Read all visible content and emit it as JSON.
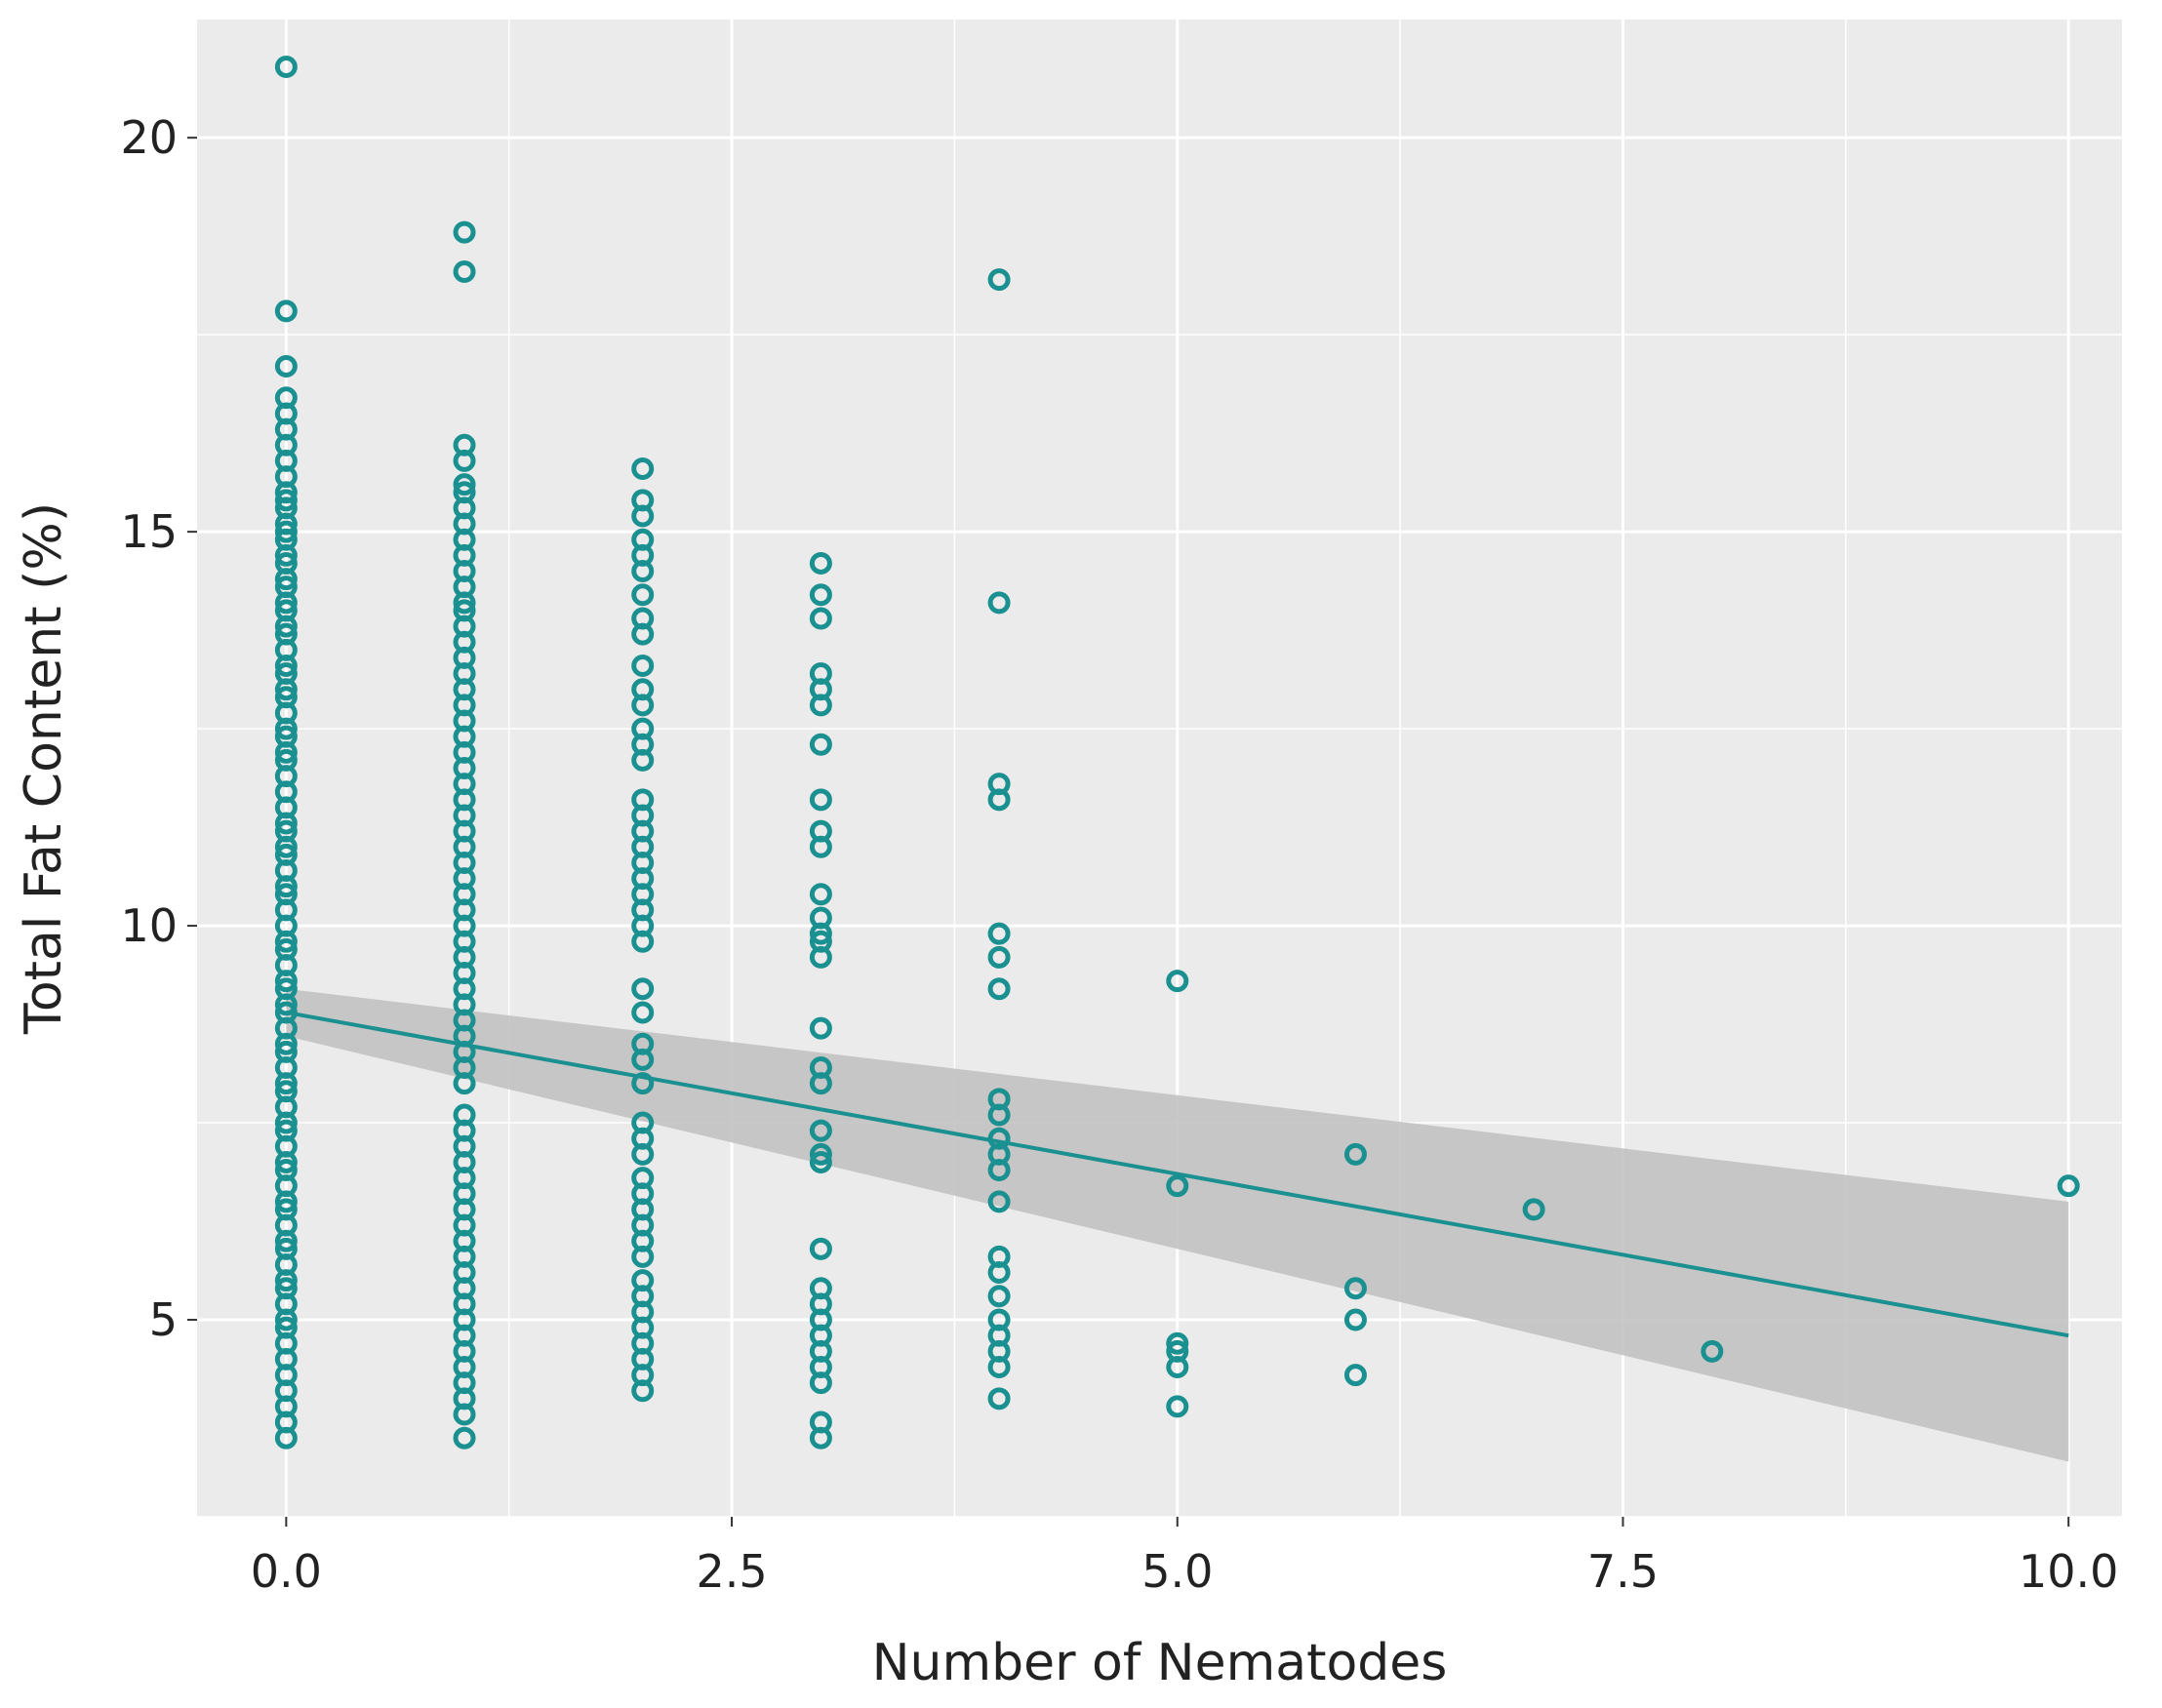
{
  "chart_data": {
    "type": "scatter",
    "title": "",
    "xlabel": "Number of Nematodes",
    "ylabel": "Total Fat Content (%)",
    "xlim": [
      -0.5,
      10.3
    ],
    "ylim": [
      2.5,
      21.5
    ],
    "x_ticks": [
      0.0,
      2.5,
      5.0,
      7.5,
      10.0
    ],
    "x_tick_labels": [
      "0.0",
      "2.5",
      "5.0",
      "7.5",
      "10.0"
    ],
    "y_ticks": [
      5,
      10,
      15,
      20
    ],
    "y_tick_labels": [
      "5",
      "10",
      "15",
      "20"
    ],
    "grid": true,
    "colors": {
      "panel": "#ebebeb",
      "grid": "#ffffff",
      "points": "#1b9090",
      "line": "#1b9090",
      "ribbon": "#c2c2c2"
    },
    "points": [
      {
        "x": 0,
        "y": [
          20.9,
          17.8,
          17.1,
          16.7,
          16.5,
          16.3,
          16.1,
          15.9,
          15.7,
          15.5,
          15.4,
          15.3,
          15.1,
          15.0,
          14.9,
          14.7,
          14.6,
          14.4,
          14.3,
          14.1,
          14.0,
          13.8,
          13.7,
          13.5,
          13.3,
          13.2,
          13.0,
          12.9,
          12.7,
          12.5,
          12.4,
          12.2,
          12.1,
          11.9,
          11.7,
          11.5,
          11.3,
          11.2,
          11.0,
          10.9,
          10.7,
          10.5,
          10.4,
          10.2,
          10.0,
          9.8,
          9.7,
          9.5,
          9.3,
          9.2,
          9.0,
          8.9,
          8.7,
          8.5,
          8.4,
          8.2,
          8.0,
          7.9,
          7.7,
          7.5,
          7.4,
          7.2,
          7.0,
          6.9,
          6.7,
          6.5,
          6.4,
          6.2,
          6.0,
          5.9,
          5.7,
          5.5,
          5.4,
          5.2,
          5.0,
          4.9,
          4.7,
          4.5,
          4.3,
          4.1,
          3.9,
          3.7,
          3.5
        ]
      },
      {
        "x": 1,
        "y": [
          18.8,
          18.3,
          16.1,
          15.9,
          15.6,
          15.5,
          15.3,
          15.1,
          14.9,
          14.7,
          14.5,
          14.3,
          14.1,
          14.0,
          13.8,
          13.6,
          13.4,
          13.2,
          13.0,
          12.8,
          12.6,
          12.4,
          12.2,
          12.0,
          11.8,
          11.6,
          11.4,
          11.2,
          11.0,
          10.8,
          10.6,
          10.4,
          10.2,
          10.0,
          9.8,
          9.6,
          9.4,
          9.2,
          9.0,
          8.8,
          8.6,
          8.4,
          8.2,
          8.0,
          7.6,
          7.4,
          7.2,
          7.0,
          6.8,
          6.6,
          6.4,
          6.2,
          6.0,
          5.8,
          5.6,
          5.4,
          5.2,
          5.0,
          4.8,
          4.6,
          4.4,
          4.2,
          4.0,
          3.8,
          3.5
        ]
      },
      {
        "x": 2,
        "y": [
          15.8,
          15.4,
          15.2,
          14.9,
          14.7,
          14.5,
          14.2,
          13.9,
          13.7,
          13.3,
          13.0,
          12.8,
          12.5,
          12.3,
          12.1,
          11.6,
          11.4,
          11.2,
          11.0,
          10.8,
          10.6,
          10.4,
          10.2,
          10.0,
          9.8,
          9.2,
          8.9,
          8.5,
          8.3,
          8.0,
          7.5,
          7.3,
          7.1,
          6.8,
          6.6,
          6.4,
          6.2,
          6.0,
          5.8,
          5.5,
          5.3,
          5.1,
          4.9,
          4.7,
          4.5,
          4.3,
          4.1
        ]
      },
      {
        "x": 3,
        "y": [
          14.6,
          14.2,
          13.9,
          13.2,
          13.0,
          12.8,
          12.3,
          11.6,
          11.2,
          11.0,
          10.4,
          10.1,
          9.9,
          9.8,
          9.6,
          8.7,
          8.2,
          8.0,
          7.4,
          7.1,
          7.0,
          5.9,
          5.4,
          5.2,
          5.0,
          4.8,
          4.6,
          4.4,
          4.2,
          3.7,
          3.5
        ]
      },
      {
        "x": 4,
        "y": [
          18.2,
          14.1,
          11.8,
          11.6,
          9.9,
          9.6,
          9.2,
          7.8,
          7.6,
          7.3,
          7.1,
          6.9,
          6.5,
          5.8,
          5.6,
          5.3,
          5.0,
          4.8,
          4.6,
          4.4,
          4.0
        ]
      },
      {
        "x": 5,
        "y": [
          9.3,
          6.7,
          4.7,
          4.6,
          4.4,
          3.9
        ]
      },
      {
        "x": 6,
        "y": [
          7.1,
          5.4,
          5.0,
          4.3
        ]
      },
      {
        "x": 7,
        "y": [
          6.4
        ]
      },
      {
        "x": 8,
        "y": [
          4.6
        ]
      },
      {
        "x": 10,
        "y": [
          6.7
        ]
      }
    ],
    "regression": {
      "x": [
        0,
        10
      ],
      "y": [
        8.9,
        4.8
      ],
      "ci_lower": [
        8.6,
        3.2
      ],
      "ci_upper": [
        9.2,
        6.5
      ]
    }
  }
}
